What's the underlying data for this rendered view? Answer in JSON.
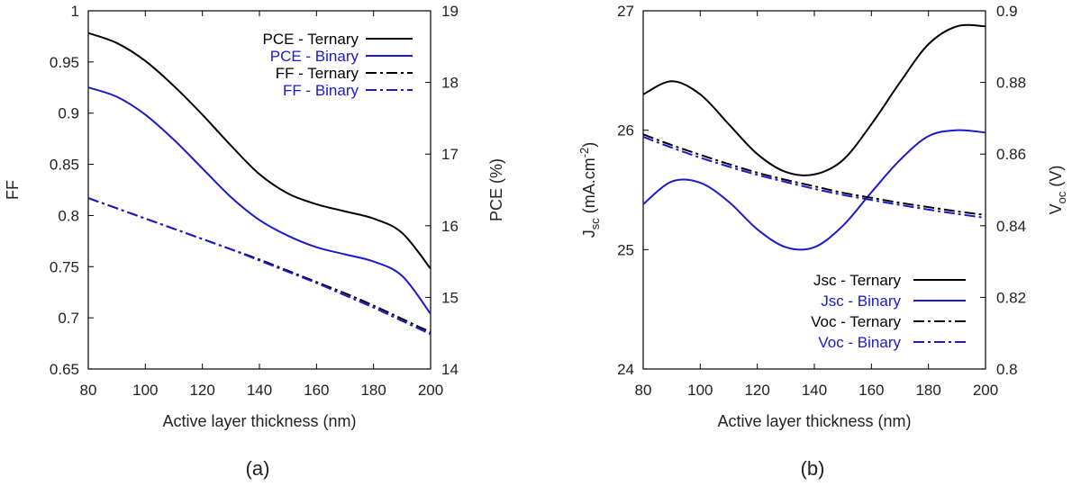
{
  "chart_data": [
    {
      "panel": "(a)",
      "type": "line",
      "xlabel": "Active layer thickness (nm)",
      "ylabel_left": "FF",
      "ylabel_right": "PCE (%)",
      "xlim": [
        80,
        200
      ],
      "xticks": [
        80,
        100,
        120,
        140,
        160,
        180,
        200
      ],
      "ylim_left": [
        0.65,
        1
      ],
      "yticks_left": [
        0.65,
        0.7,
        0.75,
        0.8,
        0.85,
        0.9,
        0.95,
        1
      ],
      "yticklabels_left": [
        "0.65",
        "0.7",
        "0.75",
        "0.8",
        "0.85",
        "0.9",
        "0.95",
        "1"
      ],
      "ylim_right": [
        14,
        19
      ],
      "yticks_right": [
        14,
        15,
        16,
        17,
        18,
        19
      ],
      "legend_position": "top-right",
      "x": [
        80,
        90,
        100,
        110,
        120,
        130,
        140,
        150,
        160,
        170,
        180,
        190,
        200
      ],
      "series": [
        {
          "name": "PCE - Ternary",
          "axis": "right",
          "color": "#000000",
          "style": "solid",
          "values": [
            18.69,
            18.55,
            18.3,
            17.95,
            17.55,
            17.12,
            16.72,
            16.45,
            16.3,
            16.2,
            16.1,
            15.9,
            15.4
          ]
        },
        {
          "name": "PCE - Binary",
          "axis": "right",
          "color": "#1a1acc",
          "style": "solid",
          "values": [
            17.93,
            17.8,
            17.55,
            17.2,
            16.8,
            16.4,
            16.08,
            15.86,
            15.7,
            15.6,
            15.5,
            15.3,
            14.77
          ]
        },
        {
          "name": "FF - Ternary",
          "axis": "left",
          "color": "#000000",
          "style": "dashdot",
          "values": [
            0.817,
            0.807,
            0.797,
            0.787,
            0.777,
            0.767,
            0.757,
            0.746,
            0.735,
            0.724,
            0.712,
            0.699,
            0.686
          ]
        },
        {
          "name": "FF - Binary",
          "axis": "left",
          "color": "#1a1acc",
          "style": "dashdot",
          "values": [
            0.817,
            0.807,
            0.797,
            0.787,
            0.777,
            0.767,
            0.756,
            0.745,
            0.734,
            0.722,
            0.71,
            0.697,
            0.684
          ]
        }
      ]
    },
    {
      "panel": "(b)",
      "type": "line",
      "xlabel": "Active layer thickness (nm)",
      "ylabel_left": "Jsc (mA.cm-2)",
      "ylabel_right": "Voc (V)",
      "xlim": [
        80,
        200
      ],
      "xticks": [
        80,
        100,
        120,
        140,
        160,
        180,
        200
      ],
      "ylim_left": [
        24,
        27
      ],
      "yticks_left": [
        24,
        25,
        26,
        27
      ],
      "ylim_right": [
        0.8,
        0.9
      ],
      "yticks_right": [
        0.8,
        0.82,
        0.84,
        0.86,
        0.88,
        0.9
      ],
      "yticklabels_right": [
        "0.8",
        "0.82",
        "0.84",
        "0.86",
        "0.88",
        "0.9"
      ],
      "legend_position": "bottom-right",
      "x": [
        80,
        90,
        100,
        110,
        120,
        130,
        140,
        150,
        160,
        170,
        180,
        190,
        200
      ],
      "series": [
        {
          "name": "Jsc - Ternary",
          "axis": "left",
          "color": "#000000",
          "style": "solid",
          "values": [
            26.3,
            26.41,
            26.3,
            26.05,
            25.8,
            25.65,
            25.63,
            25.75,
            26.05,
            26.4,
            26.72,
            26.87,
            26.87
          ]
        },
        {
          "name": "Jsc - Binary",
          "axis": "left",
          "color": "#1a1acc",
          "style": "solid",
          "values": [
            25.38,
            25.57,
            25.56,
            25.4,
            25.17,
            25.02,
            25.02,
            25.2,
            25.48,
            25.75,
            25.95,
            26.0,
            25.98
          ]
        },
        {
          "name": "Voc - Ternary",
          "axis": "right",
          "color": "#000000",
          "style": "dashdot",
          "values": [
            0.8655,
            0.8625,
            0.8598,
            0.8572,
            0.8548,
            0.8528,
            0.851,
            0.8492,
            0.8478,
            0.8464,
            0.8452,
            0.844,
            0.843
          ]
        },
        {
          "name": "Voc - Binary",
          "axis": "right",
          "color": "#1a1acc",
          "style": "dashdot",
          "values": [
            0.8648,
            0.8618,
            0.859,
            0.8565,
            0.8542,
            0.8522,
            0.8503,
            0.8486,
            0.8472,
            0.8458,
            0.8445,
            0.8433,
            0.8422
          ]
        }
      ]
    }
  ]
}
